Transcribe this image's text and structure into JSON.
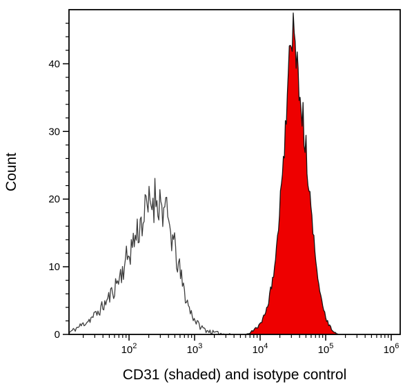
{
  "page": {
    "background": "#ffffff"
  },
  "chart_data": {
    "type": "area",
    "subtype": "flow-cytometry histogram overlay",
    "title": "",
    "xlabel": "CD31 (shaded) and isotype control",
    "ylabel": "Count",
    "x_scale": "log10",
    "x_range_log10": [
      1.084,
      6.137
    ],
    "x_tick_base": "10",
    "x_tick_exponents": [
      2,
      3,
      4,
      5,
      6
    ],
    "y_ticks": [
      0,
      10,
      20,
      30,
      40
    ],
    "y_minor_step": 2,
    "ylim": [
      0,
      48
    ],
    "grid": false,
    "axis_color": "#000000",
    "series": [
      {
        "name": "isotype control",
        "style": "open",
        "line_color": "#3d3d3d",
        "fill_color": "none",
        "peak_x_approx": 260,
        "peak_count_approx": 22,
        "noise": 0.17,
        "anchors_log10x_count": [
          [
            1.09,
            0.3
          ],
          [
            1.18,
            0.8
          ],
          [
            1.28,
            1.4
          ],
          [
            1.4,
            2.2
          ],
          [
            1.52,
            3.2
          ],
          [
            1.64,
            4.6
          ],
          [
            1.76,
            6.5
          ],
          [
            1.88,
            9.0
          ],
          [
            1.98,
            11.5
          ],
          [
            2.08,
            14.0
          ],
          [
            2.18,
            16.5
          ],
          [
            2.28,
            18.5
          ],
          [
            2.36,
            20.0
          ],
          [
            2.43,
            20.5
          ],
          [
            2.5,
            19.0
          ],
          [
            2.57,
            17.5
          ],
          [
            2.64,
            15.0
          ],
          [
            2.71,
            12.0
          ],
          [
            2.78,
            9.0
          ],
          [
            2.85,
            6.0
          ],
          [
            2.92,
            3.8
          ],
          [
            3.0,
            2.2
          ],
          [
            3.08,
            1.2
          ],
          [
            3.18,
            0.6
          ],
          [
            3.3,
            0.25
          ],
          [
            3.45,
            0.05
          ],
          [
            3.55,
            0.0
          ]
        ]
      },
      {
        "name": "CD31",
        "style": "shaded",
        "line_color": "#141414",
        "fill_color": "#ee0000",
        "peak_x_approx": 31000,
        "peak_count_approx": 47,
        "noise": 0.085,
        "anchors_log10x_count": [
          [
            3.8,
            0.0
          ],
          [
            3.88,
            0.5
          ],
          [
            3.96,
            1.1
          ],
          [
            4.04,
            2.2
          ],
          [
            4.12,
            4.5
          ],
          [
            4.19,
            8.0
          ],
          [
            4.26,
            13.5
          ],
          [
            4.32,
            21.0
          ],
          [
            4.38,
            30.0
          ],
          [
            4.43,
            38.0
          ],
          [
            4.47,
            43.5
          ],
          [
            4.51,
            44.5
          ],
          [
            4.56,
            41.0
          ],
          [
            4.61,
            36.5
          ],
          [
            4.66,
            31.5
          ],
          [
            4.71,
            26.0
          ],
          [
            4.76,
            20.5
          ],
          [
            4.81,
            15.0
          ],
          [
            4.86,
            10.5
          ],
          [
            4.91,
            6.5
          ],
          [
            4.96,
            3.8
          ],
          [
            5.01,
            2.2
          ],
          [
            5.06,
            1.2
          ],
          [
            5.12,
            0.5
          ],
          [
            5.18,
            0.0
          ]
        ]
      }
    ]
  }
}
